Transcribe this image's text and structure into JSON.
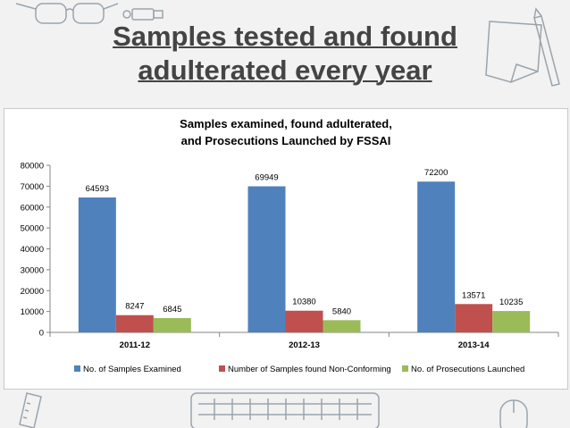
{
  "slide": {
    "title_line1": "Samples tested and found",
    "title_line2": "adulterated every year"
  },
  "chart_data": {
    "type": "bar",
    "title": "Samples examined, found adulterated,\nand Prosecutions Launched by FSSAI",
    "title_lines": [
      "Samples examined, found adulterated,",
      "and Prosecutions Launched by FSSAI"
    ],
    "categories": [
      "2011-12",
      "2012-13",
      "2013-14"
    ],
    "series": [
      {
        "name": "No. of Samples Examined",
        "values": [
          64593,
          69949,
          72200
        ],
        "color": "#4f81bd"
      },
      {
        "name": "Number of Samples found Non-Conforming",
        "values": [
          8247,
          10380,
          13571
        ],
        "color": "#c0504d"
      },
      {
        "name": "No. of Prosecutions Launched",
        "values": [
          6845,
          5840,
          10235
        ],
        "color": "#9bbb59"
      }
    ],
    "ylim": [
      0,
      80000
    ],
    "yticks": [
      0,
      10000,
      20000,
      30000,
      40000,
      50000,
      60000,
      70000,
      80000
    ],
    "grid": false,
    "data_labels": true,
    "legend_position": "bottom"
  }
}
